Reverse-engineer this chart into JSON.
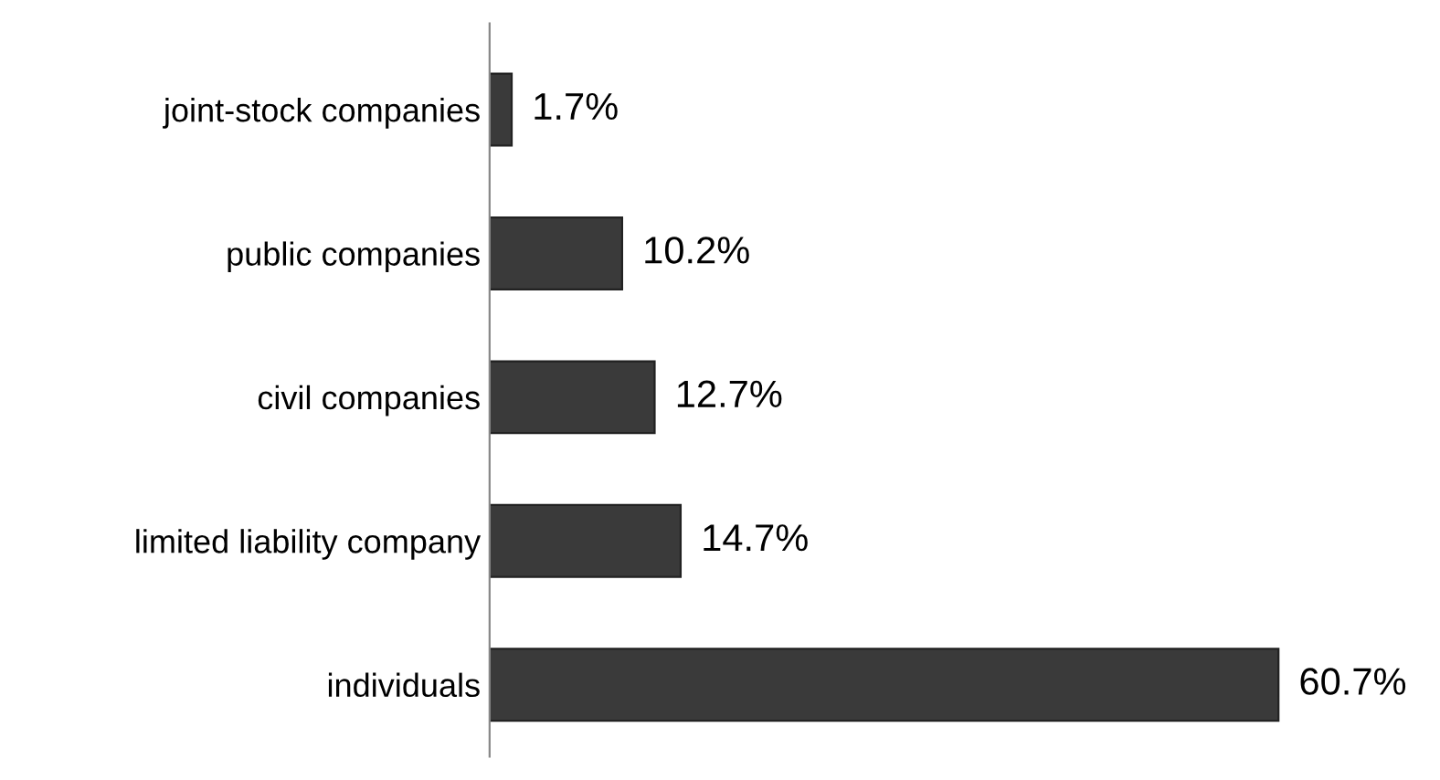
{
  "chart_data": {
    "type": "bar",
    "orientation": "horizontal",
    "categories": [
      "joint-stock companies",
      "public companies",
      "civil companies",
      "limited liability company",
      "individuals"
    ],
    "values": [
      1.7,
      10.2,
      12.7,
      14.7,
      60.7
    ],
    "value_labels": [
      "1.7%",
      "10.2%",
      "12.7%",
      "14.7%",
      "60.7%"
    ],
    "color": "#3a3a3a",
    "tick_labels": "y",
    "grid": false,
    "legend": false
  }
}
